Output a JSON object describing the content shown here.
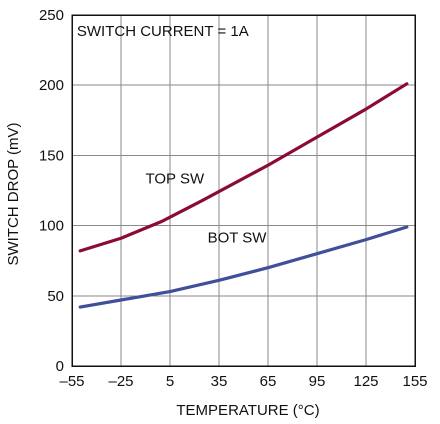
{
  "chart_data": {
    "type": "line",
    "title": "",
    "xlabel": "TEMPERATURE (°C)",
    "ylabel": "SWITCH DROP (mV)",
    "xlim": [
      -55,
      155
    ],
    "ylim": [
      0,
      250
    ],
    "x_ticks": [
      -55,
      -25,
      5,
      35,
      65,
      95,
      125,
      155
    ],
    "x_tick_labels": [
      "–55",
      "–25",
      "5",
      "35",
      "65",
      "95",
      "125",
      "155"
    ],
    "y_ticks": [
      0,
      50,
      100,
      150,
      200,
      250
    ],
    "y_tick_labels": [
      "0",
      "50",
      "100",
      "150",
      "200",
      "250"
    ],
    "grid": true,
    "annotations": [
      {
        "text": "SWITCH CURRENT = 1A",
        "x": -52,
        "y": 235
      },
      {
        "text": "TOP SW",
        "x": -10,
        "y": 130
      },
      {
        "text": "BOT SW",
        "x": 28,
        "y": 88
      }
    ],
    "series": [
      {
        "name": "TOP SW",
        "color": "#8b0a3a",
        "x": [
          -50,
          -25,
          0,
          5,
          25,
          65,
          95,
          125,
          150
        ],
        "y": [
          82,
          91,
          103,
          106,
          118,
          143,
          163,
          183,
          201
        ]
      },
      {
        "name": "BOT SW",
        "color": "#3f4f9a",
        "x": [
          -50,
          -25,
          5,
          35,
          65,
          95,
          125,
          150
        ],
        "y": [
          42,
          47,
          53,
          61,
          70,
          80,
          90,
          99
        ]
      }
    ]
  }
}
